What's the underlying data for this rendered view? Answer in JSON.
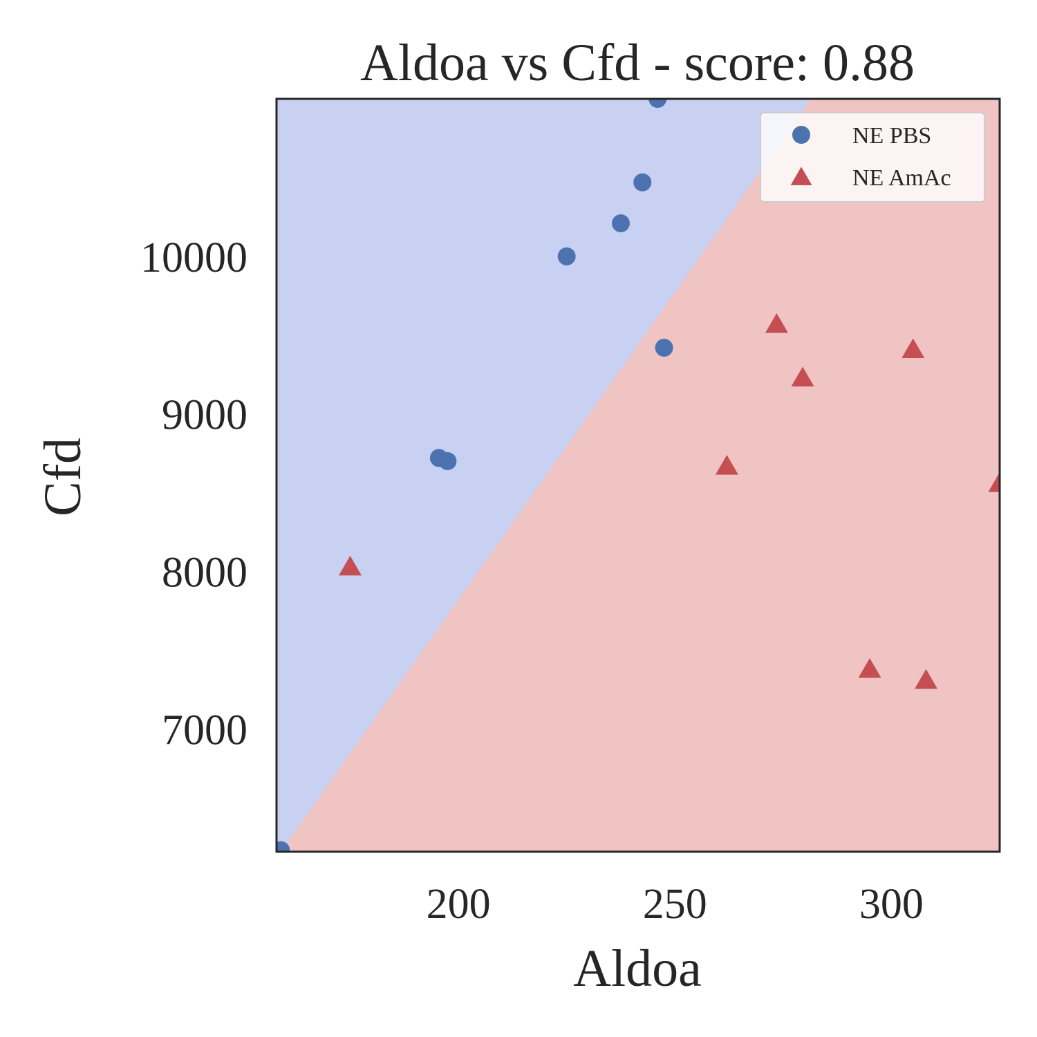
{
  "chart_data": {
    "type": "scatter",
    "title": "Aldoa vs Cfd - score: 0.88",
    "xlabel": "Aldoa",
    "ylabel": "Cfd",
    "xlim": [
      158,
      325
    ],
    "ylim": [
      6220,
      11000
    ],
    "xticks": [
      {
        "value": 200,
        "label": "200"
      },
      {
        "value": 250,
        "label": "250"
      },
      {
        "value": 300,
        "label": "300"
      }
    ],
    "yticks": [
      {
        "value": 7000,
        "label": "7000"
      },
      {
        "value": 8000,
        "label": "8000"
      },
      {
        "value": 9000,
        "label": "9000"
      },
      {
        "value": 10000,
        "label": "10000"
      }
    ],
    "grid": false,
    "legend_position": "top-right",
    "decision_boundary": {
      "points": [
        [
          159,
          6220
        ],
        [
          281.5,
          11000
        ]
      ],
      "upper_region_color": "#c8d1f1",
      "lower_region_color": "#efc4c3"
    },
    "series": [
      {
        "name": "NE PBS",
        "marker": "circle",
        "color": "#4c72b0",
        "points": [
          {
            "x": 159,
            "y": 6230
          },
          {
            "x": 195.5,
            "y": 8720
          },
          {
            "x": 197.5,
            "y": 8700
          },
          {
            "x": 225,
            "y": 10000
          },
          {
            "x": 237.5,
            "y": 10210
          },
          {
            "x": 242.5,
            "y": 10470
          },
          {
            "x": 246,
            "y": 11000
          },
          {
            "x": 247.5,
            "y": 9420
          }
        ]
      },
      {
        "name": "NE AmAc",
        "marker": "triangle",
        "color": "#c44e52",
        "points": [
          {
            "x": 175,
            "y": 8030
          },
          {
            "x": 262,
            "y": 8670
          },
          {
            "x": 273.5,
            "y": 9570
          },
          {
            "x": 279.5,
            "y": 9230
          },
          {
            "x": 295,
            "y": 7380
          },
          {
            "x": 305,
            "y": 9410
          },
          {
            "x": 308,
            "y": 7310
          },
          {
            "x": 325,
            "y": 8560
          }
        ]
      }
    ]
  }
}
